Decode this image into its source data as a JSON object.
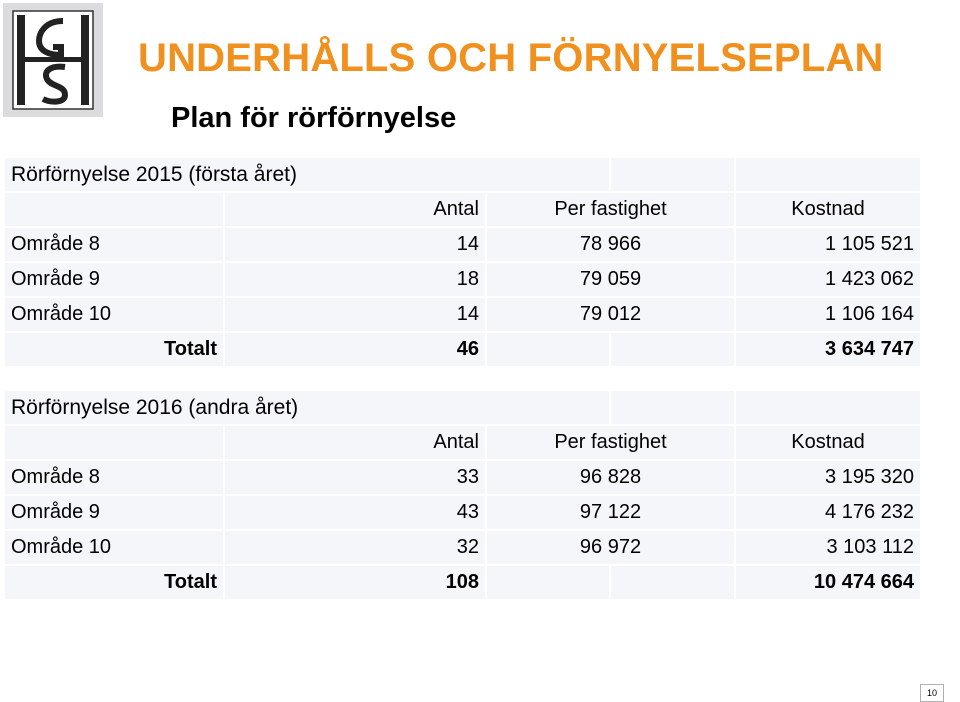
{
  "header": {
    "title": "UNDERHÅLLS OCH FÖRNYELSEPLAN",
    "subtitle": "Plan för rörförnyelse",
    "logo_text": "IGS",
    "accent_color": "#f0901e"
  },
  "sections": [
    {
      "title": "Rörförnyelse 2015 (första året)",
      "headers": {
        "antal": "Antal",
        "per_fastighet": "Per fastighet",
        "kostnad": "Kostnad"
      },
      "rows": [
        {
          "area": "Område 8",
          "antal": "14",
          "per_fastighet": "78 966",
          "kostnad": "1 105 521"
        },
        {
          "area": "Område 9",
          "antal": "18",
          "per_fastighet": "79 059",
          "kostnad": "1 423 062"
        },
        {
          "area": "Område 10",
          "antal": "14",
          "per_fastighet": "79 012",
          "kostnad": "1 106 164"
        }
      ],
      "total": {
        "label": "Totalt",
        "antal": "46",
        "kostnad": "3 634 747"
      }
    },
    {
      "title": "Rörförnyelse 2016 (andra året)",
      "headers": {
        "antal": "Antal",
        "per_fastighet": "Per fastighet",
        "kostnad": "Kostnad"
      },
      "rows": [
        {
          "area": "Område 8",
          "antal": "33",
          "per_fastighet": "96 828",
          "kostnad": "3 195 320"
        },
        {
          "area": "Område 9",
          "antal": "43",
          "per_fastighet": "97 122",
          "kostnad": "4 176 232"
        },
        {
          "area": "Område 10",
          "antal": "32",
          "per_fastighet": "96 972",
          "kostnad": "3 103 112"
        }
      ],
      "total": {
        "label": "Totalt",
        "antal": "108",
        "kostnad": "10 474 664"
      }
    }
  ],
  "footer": {
    "page_number": "10"
  }
}
